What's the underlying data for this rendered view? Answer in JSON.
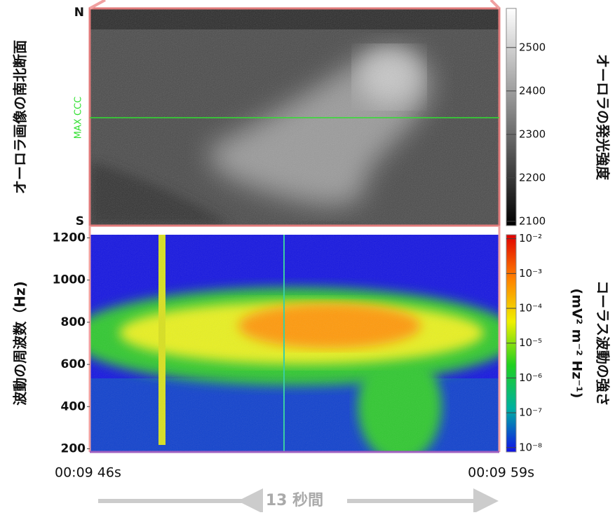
{
  "chart_data": [
    {
      "type": "image",
      "ylabel": "オーロラ画像の南北断面",
      "y_labels": [
        "N",
        "S"
      ],
      "annotation": "MAX CCC",
      "colorbar": {
        "label": "オーロラの発光強度",
        "clim": [
          2090,
          2590
        ],
        "ticks": [
          2100,
          2200,
          2300,
          2400,
          2500
        ],
        "colors": [
          "#000000",
          "#ffffff"
        ]
      }
    },
    {
      "type": "spectrogram",
      "ylabel": "波動の周波数（Hz)",
      "ylim": [
        185,
        1215
      ],
      "yticks": [
        200,
        400,
        600,
        800,
        1000,
        1200
      ],
      "x_labels": [
        "00:09 46s",
        "00:09 59s"
      ],
      "duration_label": "13 秒間",
      "colorbar": {
        "label": "コーラス波動の強さ",
        "units": "(mV² m⁻² Hz⁻¹)",
        "log": true,
        "clim": [
          7.5e-09,
          0.013
        ],
        "ticks": [
          {
            "value": 0.01,
            "label": "10⁻²"
          },
          {
            "value": 0.001,
            "label": "10⁻³"
          },
          {
            "value": 0.0001,
            "label": "10⁻⁴"
          },
          {
            "value": 1e-05,
            "label": "10⁻⁵"
          },
          {
            "value": 1e-06,
            "label": "10⁻⁶"
          },
          {
            "value": 1e-07,
            "label": "10⁻⁷"
          },
          {
            "value": 1e-08,
            "label": "10⁻⁸"
          }
        ],
        "colors": [
          "#1010e8",
          "#00b0a0",
          "#20d020",
          "#f0f000",
          "#ff8000",
          "#e00000"
        ]
      }
    }
  ]
}
